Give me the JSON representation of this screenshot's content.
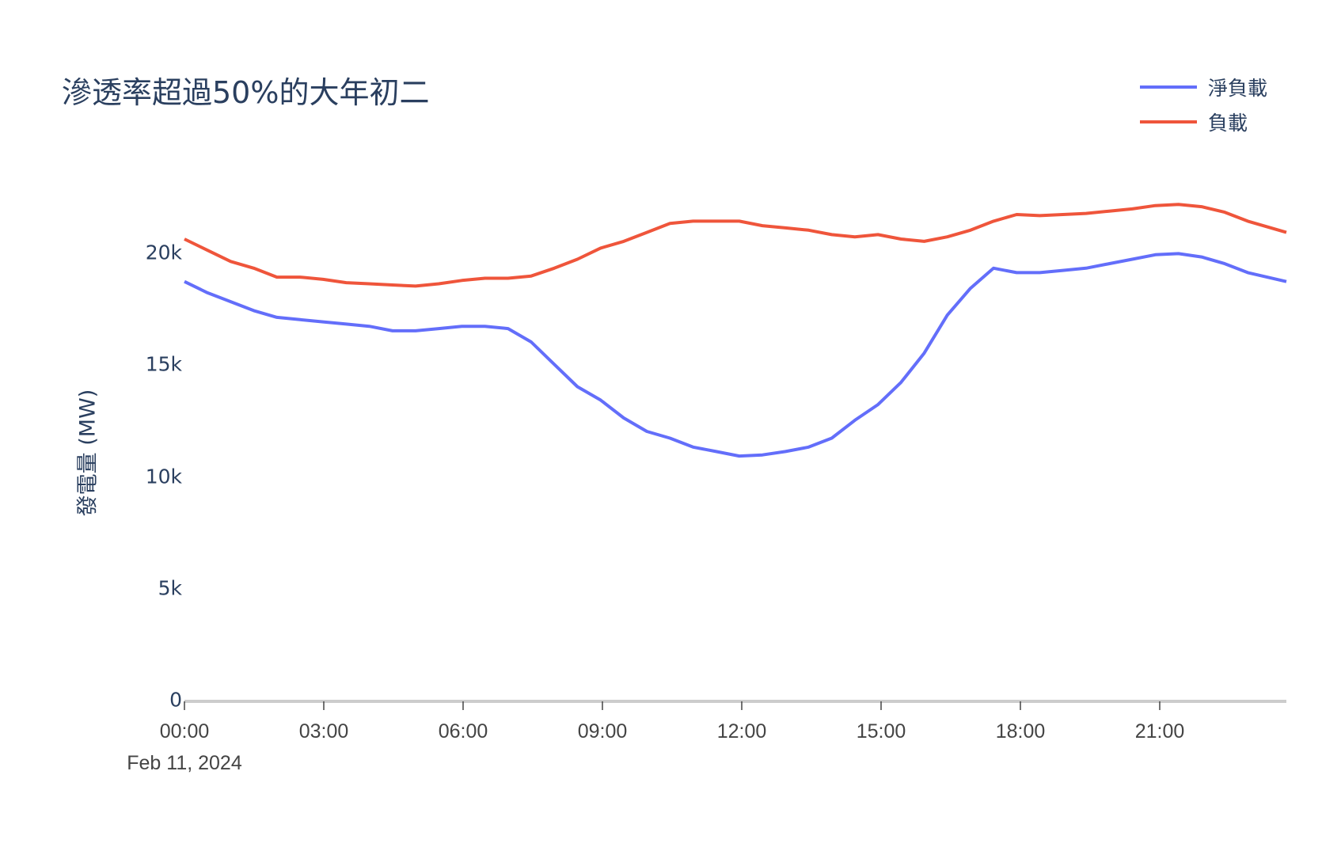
{
  "chart": {
    "title": "滲透率超過50%的大年初二",
    "ylabel": "發電量 (MW)",
    "date_label": "Feb 11, 2024",
    "yticks": [
      "0",
      "5k",
      "10k",
      "15k",
      "20k"
    ],
    "xticks": [
      "00:00",
      "03:00",
      "06:00",
      "09:00",
      "12:00",
      "15:00",
      "18:00",
      "21:00"
    ],
    "legend": [
      {
        "label": "淨負載",
        "color": "#636EFA"
      },
      {
        "label": "負載",
        "color": "#EF553B"
      }
    ]
  },
  "chart_data": {
    "type": "line",
    "title": "滲透率超過50%的大年初二",
    "xlabel": "",
    "ylabel": "發電量 (MW)",
    "ylim": [
      0,
      22500
    ],
    "x": [
      "00:00",
      "00:30",
      "01:00",
      "01:30",
      "02:00",
      "02:30",
      "03:00",
      "03:30",
      "04:00",
      "04:30",
      "05:00",
      "05:30",
      "06:00",
      "06:30",
      "07:00",
      "07:30",
      "08:00",
      "08:30",
      "09:00",
      "09:30",
      "10:00",
      "10:30",
      "11:00",
      "11:30",
      "12:00",
      "12:30",
      "13:00",
      "13:30",
      "14:00",
      "14:30",
      "15:00",
      "15:30",
      "16:00",
      "16:30",
      "17:00",
      "17:30",
      "18:00",
      "18:30",
      "19:00",
      "19:30",
      "20:00",
      "20:30",
      "21:00",
      "21:30",
      "22:00",
      "22:30",
      "23:00",
      "23:50"
    ],
    "series": [
      {
        "name": "淨負載",
        "color": "#636EFA",
        "values": [
          18700,
          18200,
          17800,
          17400,
          17100,
          17000,
          16900,
          16800,
          16700,
          16500,
          16500,
          16600,
          16700,
          16700,
          16600,
          16000,
          15000,
          14000,
          13400,
          12600,
          12000,
          11700,
          11300,
          11100,
          10900,
          10950,
          11100,
          11300,
          11700,
          12500,
          13200,
          14200,
          15500,
          17200,
          18400,
          19300,
          19100,
          19100,
          19200,
          19300,
          19500,
          19700,
          19900,
          19950,
          19800,
          19500,
          19100,
          18700
        ]
      },
      {
        "name": "負載",
        "color": "#EF553B",
        "values": [
          20600,
          20100,
          19600,
          19300,
          18900,
          18900,
          18800,
          18650,
          18600,
          18550,
          18500,
          18600,
          18750,
          18850,
          18850,
          18950,
          19300,
          19700,
          20200,
          20500,
          20900,
          21300,
          21400,
          21400,
          21400,
          21200,
          21100,
          21000,
          20800,
          20700,
          20800,
          20600,
          20500,
          20700,
          21000,
          21400,
          21700,
          21650,
          21700,
          21750,
          21850,
          21950,
          22100,
          22150,
          22050,
          21800,
          21400,
          20900
        ]
      }
    ],
    "grid": false,
    "legend_position": "top-right"
  }
}
